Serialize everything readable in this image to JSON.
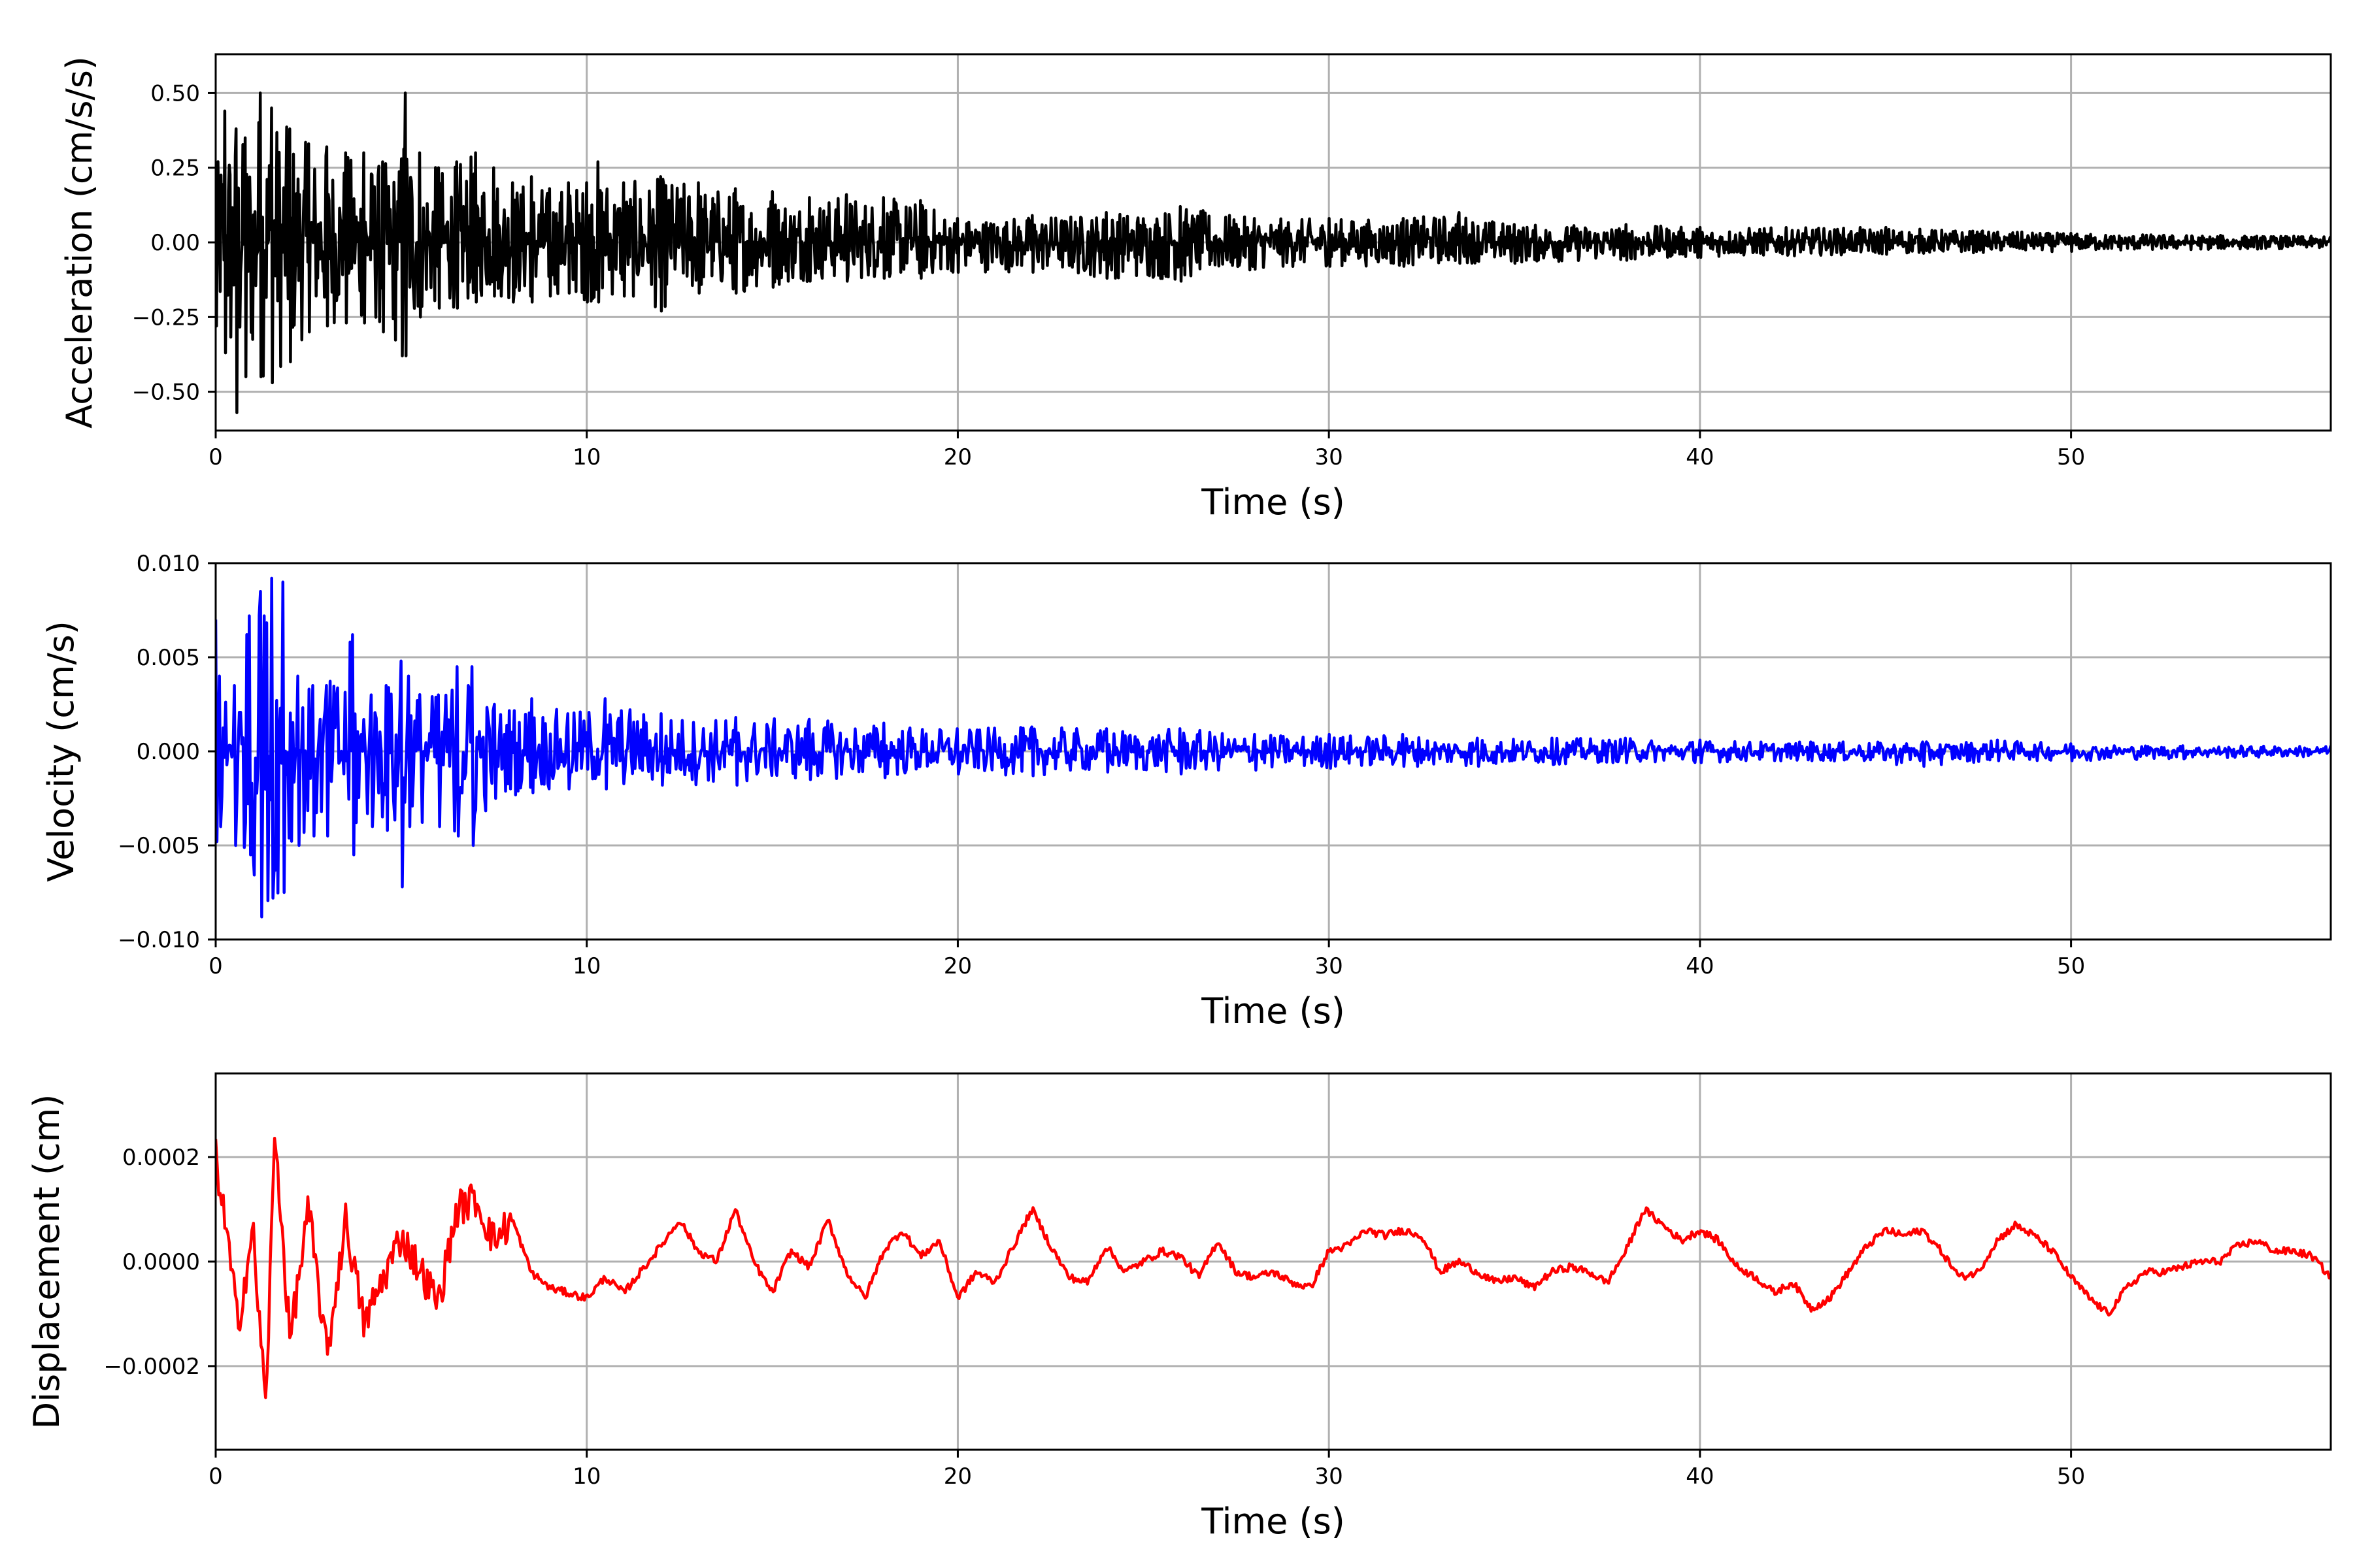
{
  "chart_data": [
    {
      "type": "line",
      "xlabel": "Time (s)",
      "ylabel": "Acceleration (cm/s/s)",
      "xlim": [
        0,
        57
      ],
      "ylim": [
        -0.63,
        0.63
      ],
      "xticks": [
        0,
        10,
        20,
        30,
        40,
        50
      ],
      "xtick_labels": [
        "0",
        "10",
        "20",
        "30",
        "40",
        "50"
      ],
      "yticks": [
        0.5,
        0.25,
        0,
        -0.25,
        -0.5
      ],
      "ytick_labels": [
        "0.50",
        "0.25",
        "0.00",
        "−0.25",
        "−0.50"
      ],
      "grid": true,
      "series": [
        {
          "color": "#000000",
          "x": [
            0,
            0.25,
            0.55,
            0.8,
            1.2,
            1.5,
            2.0,
            2.5,
            3.0,
            3.5,
            4.0,
            4.5,
            5.0,
            5.1,
            5.5,
            6.0,
            6.5,
            7.0,
            7.5,
            8.0,
            8.5,
            9.0,
            9.5,
            10.0,
            10.3,
            11.0,
            12.0,
            13.0,
            14.0,
            15.0,
            16.0,
            17.0,
            18.0,
            19.0,
            20.0,
            22.0,
            24.0,
            26.0,
            28.0,
            30.0,
            32.0,
            33.5,
            35.0,
            38.0,
            40.0,
            45.0,
            50.0,
            57.0
          ],
          "envelope_upper": [
            0.22,
            0.44,
            0.38,
            0.35,
            0.5,
            0.45,
            0.38,
            0.33,
            0.32,
            0.3,
            0.3,
            0.27,
            0.28,
            0.5,
            0.3,
            0.25,
            0.27,
            0.3,
            0.25,
            0.2,
            0.22,
            0.18,
            0.2,
            0.2,
            0.27,
            0.2,
            0.22,
            0.2,
            0.18,
            0.17,
            0.15,
            0.16,
            0.15,
            0.14,
            0.08,
            0.09,
            0.1,
            0.12,
            0.08,
            0.08,
            0.08,
            0.1,
            0.06,
            0.06,
            0.05,
            0.05,
            0.03,
            0.02
          ],
          "envelope_lower": [
            -0.28,
            -0.37,
            -0.57,
            -0.45,
            -0.45,
            -0.47,
            -0.4,
            -0.3,
            -0.28,
            -0.27,
            -0.27,
            -0.3,
            -0.38,
            -0.38,
            -0.25,
            -0.22,
            -0.22,
            -0.2,
            -0.18,
            -0.2,
            -0.2,
            -0.18,
            -0.17,
            -0.2,
            -0.2,
            -0.18,
            -0.23,
            -0.17,
            -0.17,
            -0.15,
            -0.13,
            -0.13,
            -0.12,
            -0.12,
            -0.1,
            -0.1,
            -0.12,
            -0.13,
            -0.09,
            -0.08,
            -0.08,
            -0.07,
            -0.07,
            -0.06,
            -0.05,
            -0.04,
            -0.03,
            -0.02
          ]
        }
      ]
    },
    {
      "type": "line",
      "xlabel": "Time (s)",
      "ylabel": "Velocity (cm/s)",
      "xlim": [
        0,
        57
      ],
      "ylim": [
        -0.01,
        0.01
      ],
      "xticks": [
        0,
        10,
        20,
        30,
        40,
        50
      ],
      "xtick_labels": [
        "0",
        "10",
        "20",
        "30",
        "40",
        "50"
      ],
      "yticks": [
        0.01,
        0.005,
        0,
        -0.005,
        -0.01
      ],
      "ytick_labels": [
        "0.010",
        "0.005",
        "0.000",
        "−0.005",
        "−0.010"
      ],
      "grid": true,
      "series": [
        {
          "color": "#0000ff",
          "x": [
            0,
            0.1,
            0.5,
            0.9,
            1.2,
            1.5,
            1.8,
            2.2,
            2.6,
            3.0,
            3.7,
            4.2,
            4.6,
            5.0,
            5.2,
            6.0,
            6.5,
            6.9,
            7.5,
            8.5,
            9.5,
            10.5,
            12.0,
            14.0,
            16.0,
            18.0,
            20.0,
            22.0,
            24.0,
            26.0,
            28.0,
            30.0,
            32.0,
            34.0,
            36.0,
            38.0,
            40.0,
            43.0,
            46.0,
            48.0,
            50.0,
            53.0,
            57.0
          ],
          "envelope_upper": [
            0.007,
            0.004,
            0.0035,
            0.0072,
            0.0085,
            0.0092,
            0.009,
            0.004,
            0.0035,
            0.0035,
            0.0062,
            0.003,
            0.0035,
            0.0048,
            0.004,
            0.003,
            0.0045,
            0.0045,
            0.0025,
            0.0028,
            0.002,
            0.0028,
            0.002,
            0.0018,
            0.0017,
            0.0015,
            0.0012,
            0.0013,
            0.0012,
            0.0012,
            0.0009,
            0.0009,
            0.0009,
            0.0007,
            0.0007,
            0.0007,
            0.0006,
            0.0005,
            0.0005,
            0.0006,
            0.0004,
            0.0003,
            0.0003
          ],
          "envelope_lower": [
            -0.0048,
            -0.004,
            -0.005,
            -0.0055,
            -0.0088,
            -0.0078,
            -0.0075,
            -0.005,
            -0.0045,
            -0.0045,
            -0.0055,
            -0.004,
            -0.0042,
            -0.0072,
            -0.004,
            -0.004,
            -0.0045,
            -0.005,
            -0.0025,
            -0.0022,
            -0.002,
            -0.002,
            -0.0018,
            -0.0018,
            -0.0015,
            -0.0014,
            -0.0012,
            -0.0013,
            -0.0011,
            -0.0012,
            -0.001,
            -0.0009,
            -0.0008,
            -0.0008,
            -0.0007,
            -0.0006,
            -0.0006,
            -0.0005,
            -0.0008,
            -0.0005,
            -0.0005,
            -0.0004,
            -0.0003
          ]
        }
      ]
    },
    {
      "type": "line",
      "xlabel": "Time (s)",
      "ylabel": "Displacement (cm)",
      "xlim": [
        0,
        57
      ],
      "ylim": [
        -0.00036,
        0.00036
      ],
      "xticks": [
        0,
        10,
        20,
        30,
        40,
        50
      ],
      "xtick_labels": [
        "0",
        "10",
        "20",
        "30",
        "40",
        "50"
      ],
      "yticks": [
        0.0002,
        0,
        -0.0002
      ],
      "ytick_labels": [
        "0.0002",
        "0.0000",
        "−0.0002"
      ],
      "grid": true,
      "series": [
        {
          "color": "#ff0000",
          "x": [
            0,
            0.3,
            0.6,
            1.0,
            1.35,
            1.6,
            2.0,
            2.5,
            3.0,
            3.5,
            4.0,
            5.0,
            6.0,
            6.5,
            7.0,
            7.5,
            8.0,
            8.5,
            9.0,
            10.0,
            10.5,
            11.0,
            12.0,
            12.5,
            13.0,
            13.5,
            14.0,
            14.5,
            15.0,
            15.5,
            16.0,
            16.5,
            17.0,
            17.5,
            18.0,
            18.5,
            19.0,
            19.5,
            20.0,
            20.5,
            21.0,
            21.5,
            22.0,
            22.5,
            23.0,
            23.5,
            24.0,
            24.5,
            25.0,
            25.5,
            26.0,
            26.5,
            27.0,
            27.5,
            28.0,
            28.5,
            29.0,
            29.5,
            30.0,
            30.5,
            31.0,
            31.5,
            32.0,
            32.5,
            33.0,
            33.5,
            34.0,
            34.5,
            35.0,
            35.5,
            36.0,
            36.5,
            37.0,
            37.5,
            38.0,
            38.5,
            39.0,
            39.5,
            40.0,
            40.5,
            41.0,
            41.5,
            42.0,
            42.5,
            43.0,
            43.5,
            44.0,
            44.5,
            45.0,
            45.5,
            46.0,
            46.5,
            47.0,
            47.5,
            48.0,
            48.5,
            49.0,
            49.5,
            50.0,
            50.5,
            51.0,
            51.5,
            52.0,
            52.5,
            53.0,
            53.5,
            54.0,
            54.5,
            55.0,
            55.5,
            56.0,
            56.5,
            57.0
          ],
          "y": [
            0.0002,
            5e-05,
            -0.00012,
            6e-05,
            -0.00028,
            0.00025,
            -0.00015,
            0.0001,
            -0.00018,
            8e-05,
            -0.00012,
            5e-05,
            -8e-05,
            0.0001,
            0.00012,
            4e-05,
            8e-05,
            -2e-05,
            -5e-05,
            -7e-05,
            -3e-05,
            -6e-05,
            3e-05,
            8e-05,
            2e-05,
            0.0,
            0.0001,
            0.0,
            -6e-05,
            2e-05,
            -1e-05,
            8e-05,
            -2e-05,
            -7e-05,
            2e-05,
            6e-05,
            1e-05,
            4e-05,
            -7e-05,
            -2e-05,
            -4e-05,
            3e-05,
            0.0001,
            3e-05,
            -3e-05,
            -4e-05,
            3e-05,
            -2e-05,
            0.0,
            2e-05,
            1e-05,
            -3e-05,
            4e-05,
            -2e-05,
            -3e-05,
            -2e-05,
            -4e-05,
            -5e-05,
            2e-05,
            3e-05,
            6e-05,
            5e-05,
            6e-05,
            5e-05,
            -2e-05,
            0.0,
            -2e-05,
            -4e-05,
            -3e-05,
            -5e-05,
            -2e-05,
            -1e-05,
            -2e-05,
            -4e-05,
            2e-05,
            0.0001,
            7e-05,
            4e-05,
            6e-05,
            4e-05,
            -1e-05,
            -3e-05,
            -6e-05,
            -4e-05,
            -9e-05,
            -7e-05,
            -2e-05,
            3e-05,
            6e-05,
            5e-05,
            6e-05,
            2e-05,
            -3e-05,
            -2e-05,
            4e-05,
            7e-05,
            5e-05,
            2e-05,
            -3e-05,
            -7e-05,
            -0.0001,
            -5e-05,
            -2e-05,
            -2e-05,
            -1e-05,
            0.0,
            0.0,
            3e-05,
            4e-05,
            2e-05,
            2e-05,
            1e-05,
            -3e-05
          ]
        }
      ]
    }
  ]
}
